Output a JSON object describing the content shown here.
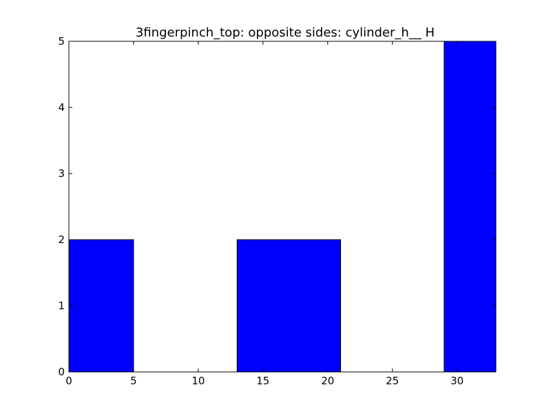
{
  "chart_data": {
    "type": "bar",
    "title": "3fingerpinch_top: opposite sides: cylinder_h__ H",
    "xlabel": "",
    "ylabel": "",
    "xlim": [
      0,
      33
    ],
    "ylim": [
      0,
      5
    ],
    "x_ticks": [
      0,
      5,
      10,
      15,
      20,
      25,
      30
    ],
    "y_ticks": [
      0,
      1,
      2,
      3,
      4,
      5
    ],
    "grid": false,
    "bar_color": "#0000ff",
    "edge_color": "#000000",
    "bars": [
      {
        "x_start": 0,
        "x_end": 5,
        "value": 2
      },
      {
        "x_start": 13,
        "x_end": 21,
        "value": 2
      },
      {
        "x_start": 29,
        "x_end": 33,
        "value": 5
      }
    ]
  }
}
